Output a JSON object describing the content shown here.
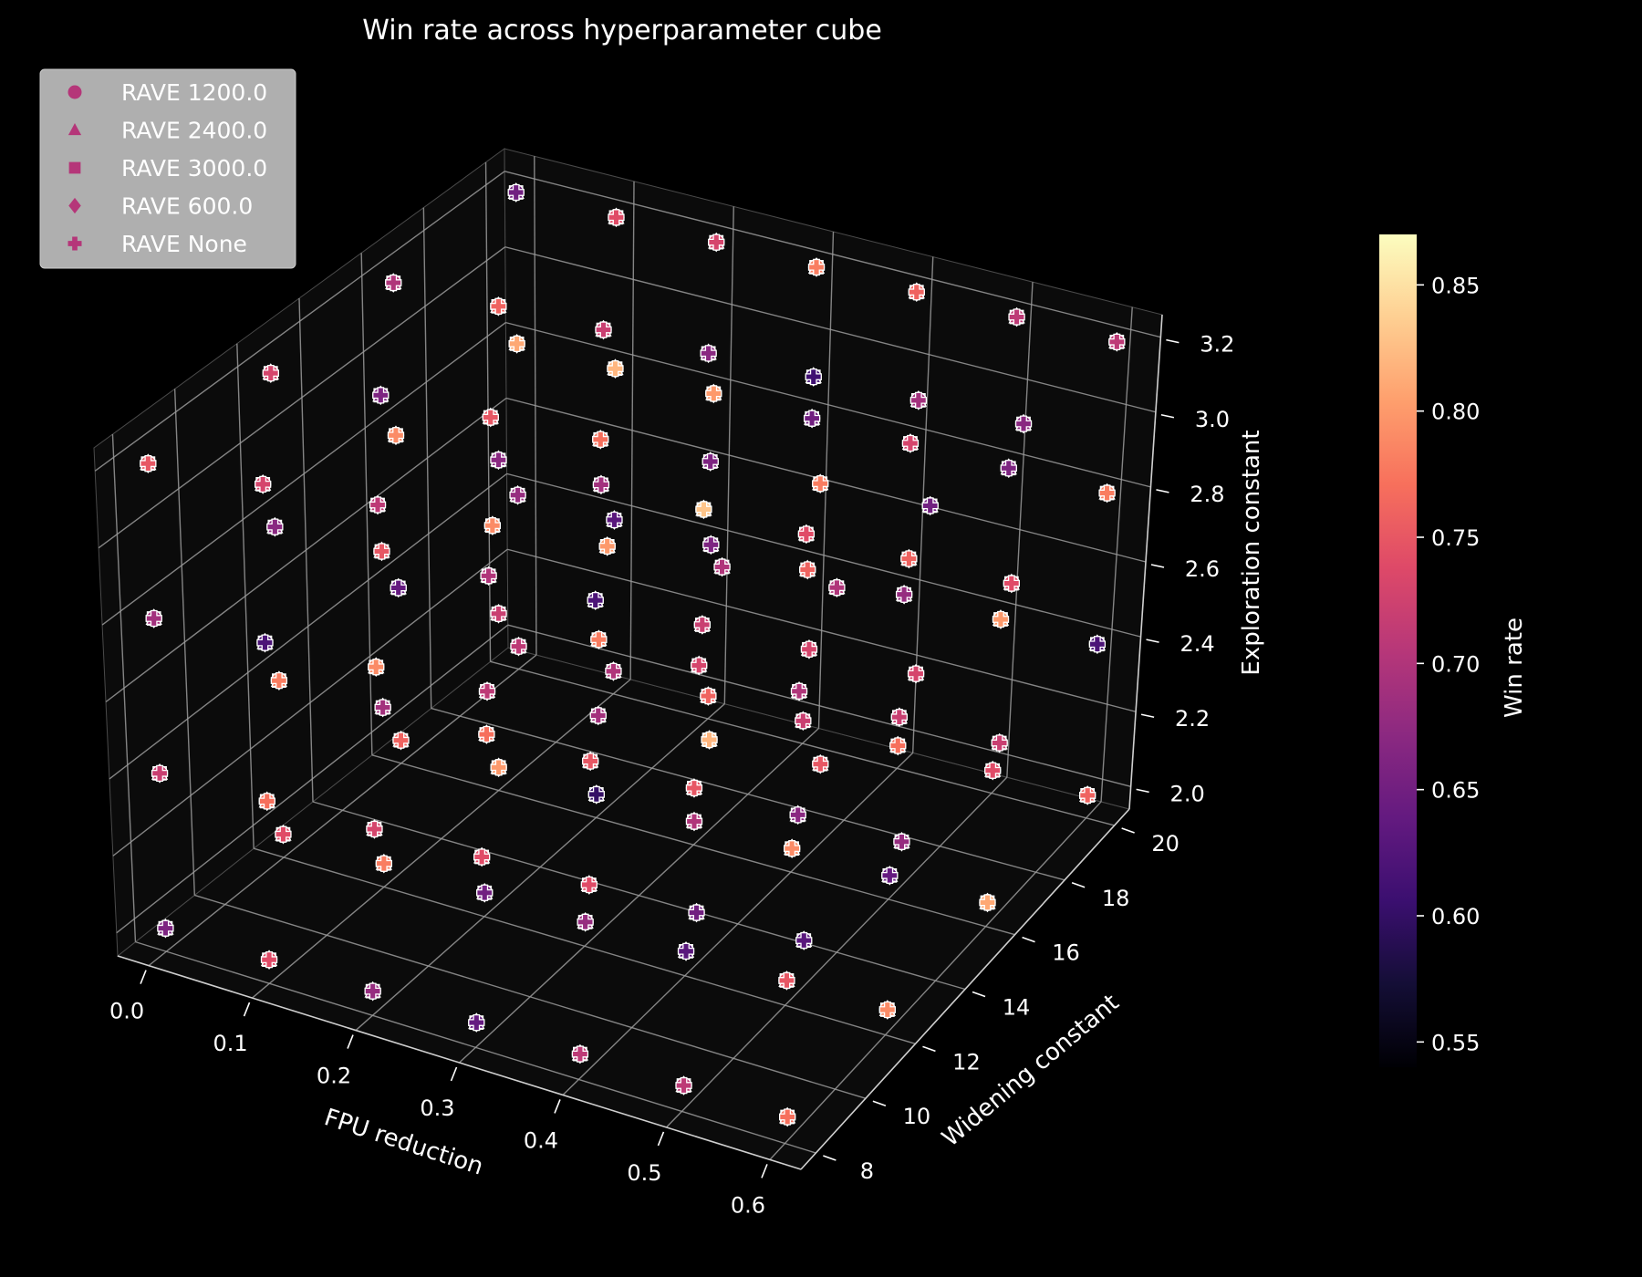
{
  "chart_data": {
    "type": "scatter",
    "projection": "3d",
    "title": "Win rate across hyperparameter cube",
    "xlabel": "FPU reduction",
    "ylabel": "Widening constant",
    "zlabel": "Exploration constant",
    "xlim": [
      -0.03,
      0.63
    ],
    "ylim": [
      7.4,
      20.6
    ],
    "zlim": [
      1.94,
      3.26
    ],
    "xticks": [
      "0.0",
      "0.1",
      "0.2",
      "0.3",
      "0.4",
      "0.5",
      "0.6"
    ],
    "yticks": [
      "8",
      "10",
      "12",
      "14",
      "16",
      "18",
      "20"
    ],
    "zticks": [
      "2.0",
      "2.2",
      "2.4",
      "2.6",
      "2.8",
      "3.0",
      "3.2"
    ],
    "grid": true,
    "background": "#000000",
    "pane_color": "#0b0b0b",
    "colorbar": {
      "label": "Win rate",
      "range": [
        0.54,
        0.87
      ],
      "ticks": [
        "0.55",
        "0.60",
        "0.65",
        "0.70",
        "0.75",
        "0.80",
        "0.85"
      ],
      "colormap": "magma"
    },
    "legend": {
      "placement": "top-left",
      "entries": [
        {
          "label": "RAVE 1200.0",
          "marker": "circle"
        },
        {
          "label": "RAVE 2400.0",
          "marker": "triangle"
        },
        {
          "label": "RAVE 3000.0",
          "marker": "square"
        },
        {
          "label": "RAVE 600.0",
          "marker": "diamond"
        },
        {
          "label": "RAVE None",
          "marker": "plus"
        }
      ],
      "marker_color": "#b53679"
    },
    "grid_values": {
      "fpu": [
        0.0,
        0.1,
        0.2,
        0.3,
        0.4,
        0.5,
        0.6
      ],
      "widening": [
        8,
        12,
        16,
        20
      ],
      "exploration": [
        2.0,
        2.4,
        2.8,
        3.2
      ]
    },
    "win_rates": [
      0.66,
      0.72,
      0.69,
      0.75,
      0.74,
      0.78,
      0.67,
      0.73,
      0.76,
      0.64,
      0.79,
      0.7,
      0.71,
      0.68,
      0.81,
      0.65,
      0.74,
      0.77,
      0.62,
      0.73,
      0.78,
      0.69,
      0.75,
      0.66,
      0.8,
      0.72,
      0.67,
      0.76,
      0.7,
      0.63,
      0.82,
      0.74,
      0.68,
      0.73,
      0.79,
      0.71,
      0.65,
      0.77,
      0.7,
      0.75,
      0.6,
      0.78,
      0.69,
      0.72,
      0.76,
      0.66,
      0.8,
      0.73,
      0.64,
      0.74,
      0.71,
      0.79,
      0.68,
      0.75,
      0.62,
      0.77,
      0.7,
      0.73,
      0.83,
      0.67,
      0.72,
      0.76,
      0.65,
      0.78,
      0.71,
      0.74,
      0.69,
      0.8,
      0.63,
      0.75,
      0.72,
      0.66,
      0.79,
      0.7,
      0.74,
      0.61,
      0.77,
      0.68,
      0.73,
      0.76,
      0.71,
      0.65,
      0.82,
      0.7,
      0.75,
      0.67,
      0.73,
      0.78,
      0.64,
      0.72,
      0.76,
      0.69,
      0.74,
      0.8,
      0.66,
      0.71,
      0.77,
      0.63,
      0.75,
      0.7,
      0.79,
      0.68,
      0.73,
      0.65,
      0.81,
      0.72,
      0.74,
      0.67,
      0.76,
      0.62,
      0.78,
      0.71
    ]
  }
}
